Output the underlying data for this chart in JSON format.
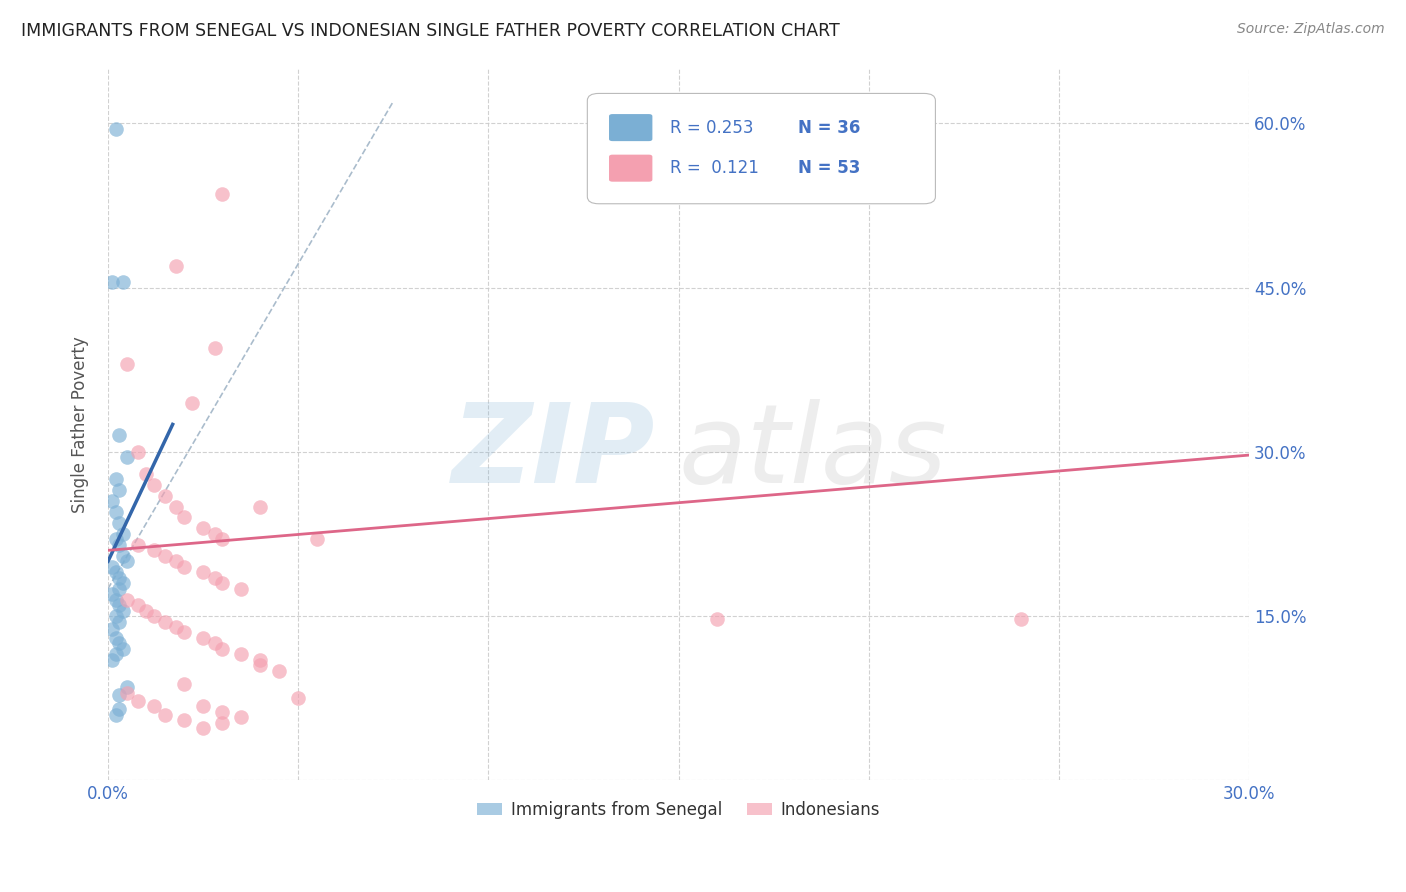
{
  "title": "IMMIGRANTS FROM SENEGAL VS INDONESIAN SINGLE FATHER POVERTY CORRELATION CHART",
  "source": "Source: ZipAtlas.com",
  "ylabel": "Single Father Poverty",
  "xlim": [
    0.0,
    0.3
  ],
  "ylim": [
    0.0,
    0.65
  ],
  "xtick_positions": [
    0.0,
    0.05,
    0.1,
    0.15,
    0.2,
    0.25,
    0.3
  ],
  "xtick_labels": [
    "0.0%",
    "",
    "",
    "",
    "",
    "",
    "30.0%"
  ],
  "ytick_positions": [
    0.0,
    0.15,
    0.3,
    0.45,
    0.6
  ],
  "right_ytick_labels": [
    "60.0%",
    "45.0%",
    "30.0%",
    "15.0%"
  ],
  "right_ytick_positions": [
    0.6,
    0.45,
    0.3,
    0.15
  ],
  "blue_color": "#7bafd4",
  "pink_color": "#f4a0b0",
  "blue_line_color": "#3366aa",
  "pink_line_color": "#dd6688",
  "dashed_line_color": "#aabccc",
  "grid_color": "#cccccc",
  "axis_label_color": "#4472c4",
  "legend_R1": "0.253",
  "legend_N1": "36",
  "legend_R2": "0.121",
  "legend_N2": "53",
  "blue_scatter_x": [
    0.002,
    0.004,
    0.001,
    0.003,
    0.005,
    0.002,
    0.003,
    0.001,
    0.002,
    0.003,
    0.004,
    0.002,
    0.003,
    0.004,
    0.005,
    0.001,
    0.002,
    0.003,
    0.004,
    0.003,
    0.001,
    0.002,
    0.003,
    0.004,
    0.002,
    0.003,
    0.001,
    0.002,
    0.003,
    0.004,
    0.002,
    0.001,
    0.003,
    0.002,
    0.005,
    0.003
  ],
  "blue_scatter_y": [
    0.595,
    0.455,
    0.455,
    0.315,
    0.295,
    0.275,
    0.265,
    0.255,
    0.245,
    0.235,
    0.225,
    0.22,
    0.215,
    0.205,
    0.2,
    0.195,
    0.19,
    0.185,
    0.18,
    0.175,
    0.17,
    0.165,
    0.16,
    0.155,
    0.15,
    0.145,
    0.138,
    0.13,
    0.125,
    0.12,
    0.115,
    0.11,
    0.065,
    0.06,
    0.085,
    0.078
  ],
  "pink_scatter_x": [
    0.03,
    0.018,
    0.028,
    0.022,
    0.005,
    0.008,
    0.01,
    0.012,
    0.015,
    0.018,
    0.02,
    0.025,
    0.028,
    0.03,
    0.008,
    0.012,
    0.015,
    0.018,
    0.02,
    0.025,
    0.028,
    0.03,
    0.035,
    0.04,
    0.005,
    0.008,
    0.01,
    0.012,
    0.015,
    0.018,
    0.02,
    0.025,
    0.028,
    0.03,
    0.035,
    0.04,
    0.045,
    0.05,
    0.055,
    0.16,
    0.24,
    0.005,
    0.008,
    0.012,
    0.015,
    0.02,
    0.025,
    0.03,
    0.035,
    0.04,
    0.02,
    0.025,
    0.03
  ],
  "pink_scatter_y": [
    0.535,
    0.47,
    0.395,
    0.345,
    0.38,
    0.3,
    0.28,
    0.27,
    0.26,
    0.25,
    0.24,
    0.23,
    0.225,
    0.22,
    0.215,
    0.21,
    0.205,
    0.2,
    0.195,
    0.19,
    0.185,
    0.18,
    0.175,
    0.25,
    0.165,
    0.16,
    0.155,
    0.15,
    0.145,
    0.14,
    0.135,
    0.13,
    0.125,
    0.12,
    0.115,
    0.11,
    0.1,
    0.075,
    0.22,
    0.147,
    0.147,
    0.08,
    0.072,
    0.068,
    0.06,
    0.055,
    0.048,
    0.052,
    0.058,
    0.105,
    0.088,
    0.068,
    0.062
  ],
  "blue_trend_x": [
    0.0,
    0.017
  ],
  "blue_trend_y": [
    0.2,
    0.325
  ],
  "pink_trend_x": [
    0.0,
    0.3
  ],
  "pink_trend_y": [
    0.21,
    0.297
  ],
  "dashed_trend_x": [
    0.0,
    0.075
  ],
  "dashed_trend_y": [
    0.175,
    0.62
  ]
}
